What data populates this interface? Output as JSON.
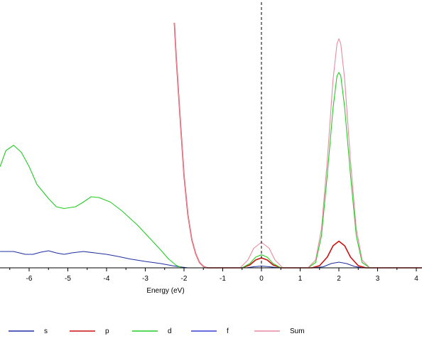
{
  "chart_data": {
    "type": "line",
    "title": "",
    "xlabel": "Energy (eV)",
    "ylabel": "",
    "xlim": [
      -6.75,
      4.15
    ],
    "ylim": [
      0,
      6.9
    ],
    "x_ticks": [
      -6,
      -5,
      -4,
      -3,
      -2,
      -1,
      0,
      1,
      2,
      3,
      4
    ],
    "x_tick_labels": [
      "-6",
      "-5",
      "-4",
      "-3",
      "-2",
      "-1",
      "0",
      "1",
      "2",
      "3",
      "4"
    ],
    "fermi_level": 0,
    "grid": false,
    "legend_position": "bottom",
    "series": [
      {
        "name": "s",
        "color": "#1f2fa0",
        "points": [
          [
            -6.75,
            0.46
          ],
          [
            -6.4,
            0.46
          ],
          [
            -6.1,
            0.38
          ],
          [
            -5.9,
            0.38
          ],
          [
            -5.7,
            0.44
          ],
          [
            -5.5,
            0.48
          ],
          [
            -5.3,
            0.42
          ],
          [
            -5.1,
            0.38
          ],
          [
            -4.9,
            0.42
          ],
          [
            -4.6,
            0.46
          ],
          [
            -4.3,
            0.42
          ],
          [
            -4.0,
            0.38
          ],
          [
            -3.7,
            0.32
          ],
          [
            -3.4,
            0.25
          ],
          [
            -3.0,
            0.18
          ],
          [
            -2.6,
            0.12
          ],
          [
            -2.3,
            0.06
          ],
          [
            -2.05,
            0.02
          ],
          [
            -1.9,
            0.0
          ],
          [
            -0.4,
            0.0
          ],
          [
            -0.2,
            0.03
          ],
          [
            0.0,
            0.05
          ],
          [
            0.2,
            0.03
          ],
          [
            0.45,
            0.0
          ],
          [
            1.35,
            0.0
          ],
          [
            1.6,
            0.03
          ],
          [
            1.8,
            0.12
          ],
          [
            2.0,
            0.16
          ],
          [
            2.2,
            0.12
          ],
          [
            2.4,
            0.04
          ],
          [
            2.6,
            0.0
          ],
          [
            4.15,
            0.0
          ]
        ]
      },
      {
        "name": "p",
        "color": "#cc1010",
        "points": [
          [
            -2.25,
            6.9
          ],
          [
            -2.2,
            5.9
          ],
          [
            -2.1,
            4.2
          ],
          [
            -2.0,
            2.6
          ],
          [
            -1.9,
            1.5
          ],
          [
            -1.8,
            0.8
          ],
          [
            -1.7,
            0.4
          ],
          [
            -1.6,
            0.15
          ],
          [
            -1.5,
            0.04
          ],
          [
            -1.4,
            0.0
          ],
          [
            -0.5,
            0.0
          ],
          [
            -0.3,
            0.08
          ],
          [
            -0.15,
            0.22
          ],
          [
            0.0,
            0.28
          ],
          [
            0.15,
            0.22
          ],
          [
            0.3,
            0.08
          ],
          [
            0.5,
            0.0
          ],
          [
            1.3,
            0.0
          ],
          [
            1.5,
            0.06
          ],
          [
            1.7,
            0.3
          ],
          [
            1.85,
            0.62
          ],
          [
            2.0,
            0.75
          ],
          [
            2.15,
            0.62
          ],
          [
            2.3,
            0.3
          ],
          [
            2.5,
            0.06
          ],
          [
            2.7,
            0.0
          ],
          [
            4.15,
            0.0
          ]
        ]
      },
      {
        "name": "d",
        "color": "#22cc22",
        "points": [
          [
            -6.75,
            2.85
          ],
          [
            -6.6,
            3.3
          ],
          [
            -6.4,
            3.45
          ],
          [
            -6.2,
            3.25
          ],
          [
            -6.0,
            2.85
          ],
          [
            -5.8,
            2.35
          ],
          [
            -5.5,
            1.95
          ],
          [
            -5.3,
            1.72
          ],
          [
            -5.1,
            1.67
          ],
          [
            -4.8,
            1.72
          ],
          [
            -4.6,
            1.85
          ],
          [
            -4.4,
            2.0
          ],
          [
            -4.2,
            1.98
          ],
          [
            -3.9,
            1.85
          ],
          [
            -3.6,
            1.6
          ],
          [
            -3.2,
            1.2
          ],
          [
            -2.9,
            0.85
          ],
          [
            -2.6,
            0.5
          ],
          [
            -2.4,
            0.25
          ],
          [
            -2.2,
            0.07
          ],
          [
            -2.05,
            0.0
          ],
          [
            -0.5,
            0.0
          ],
          [
            -0.3,
            0.12
          ],
          [
            -0.15,
            0.3
          ],
          [
            0.0,
            0.37
          ],
          [
            0.15,
            0.3
          ],
          [
            0.3,
            0.12
          ],
          [
            0.5,
            0.0
          ],
          [
            1.2,
            0.0
          ],
          [
            1.4,
            0.15
          ],
          [
            1.55,
            0.9
          ],
          [
            1.7,
            2.6
          ],
          [
            1.85,
            4.5
          ],
          [
            1.95,
            5.4
          ],
          [
            2.0,
            5.5
          ],
          [
            2.05,
            5.4
          ],
          [
            2.15,
            4.5
          ],
          [
            2.3,
            2.6
          ],
          [
            2.45,
            0.9
          ],
          [
            2.6,
            0.15
          ],
          [
            2.8,
            0.0
          ],
          [
            4.15,
            0.0
          ]
        ]
      },
      {
        "name": "f",
        "color": "#3c3cd8",
        "points": [
          [
            -6.75,
            0.0
          ],
          [
            4.15,
            0.0
          ]
        ]
      },
      {
        "name": "Sum",
        "color": "#e88aa0",
        "points": [
          [
            -2.25,
            6.9
          ],
          [
            -2.2,
            5.9
          ],
          [
            -2.1,
            4.2
          ],
          [
            -2.0,
            2.6
          ],
          [
            -1.9,
            1.5
          ],
          [
            -1.8,
            0.8
          ],
          [
            -1.7,
            0.4
          ],
          [
            -1.6,
            0.15
          ],
          [
            -1.5,
            0.04
          ],
          [
            -1.4,
            0.0
          ],
          [
            -0.55,
            0.0
          ],
          [
            -0.35,
            0.22
          ],
          [
            -0.2,
            0.55
          ],
          [
            0.0,
            0.72
          ],
          [
            0.2,
            0.55
          ],
          [
            0.35,
            0.22
          ],
          [
            0.55,
            0.0
          ],
          [
            1.2,
            0.0
          ],
          [
            1.4,
            0.22
          ],
          [
            1.55,
            1.1
          ],
          [
            1.7,
            3.0
          ],
          [
            1.85,
            5.3
          ],
          [
            1.95,
            6.3
          ],
          [
            2.0,
            6.45
          ],
          [
            2.05,
            6.3
          ],
          [
            2.15,
            5.3
          ],
          [
            2.3,
            3.0
          ],
          [
            2.45,
            1.1
          ],
          [
            2.6,
            0.22
          ],
          [
            2.8,
            0.0
          ],
          [
            4.15,
            0.0
          ]
        ]
      }
    ]
  }
}
